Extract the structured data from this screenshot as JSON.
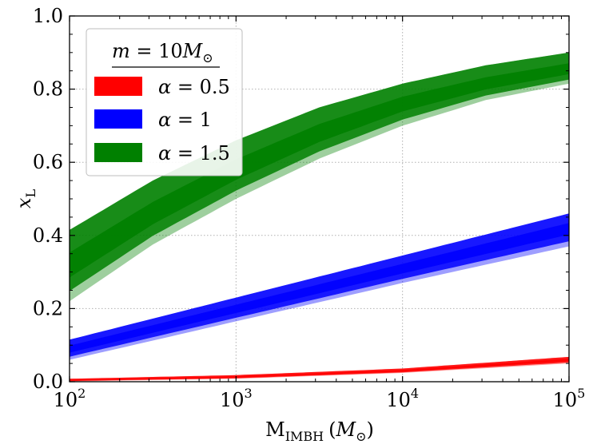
{
  "chart_data": {
    "type": "area",
    "title": "",
    "xlabel": {
      "main": "M",
      "sub": "IMBH",
      "unit_open": "(",
      "unit_var": "M",
      "unit_sub": "⊙",
      "unit_close": ")"
    },
    "ylabel": {
      "main": "x",
      "sub": "L"
    },
    "xscale": "log",
    "xlim": [
      100,
      100000
    ],
    "ylim": [
      0.0,
      1.0
    ],
    "grid": true,
    "x_ticks": [
      {
        "value": 100,
        "base": "10",
        "exp": "2"
      },
      {
        "value": 1000,
        "base": "10",
        "exp": "3"
      },
      {
        "value": 10000,
        "base": "10",
        "exp": "4"
      },
      {
        "value": 100000,
        "base": "10",
        "exp": "5"
      }
    ],
    "y_ticks": [
      {
        "value": 0.0,
        "label": "0.0"
      },
      {
        "value": 0.2,
        "label": "0.2"
      },
      {
        "value": 0.4,
        "label": "0.4"
      },
      {
        "value": 0.6,
        "label": "0.6"
      },
      {
        "value": 0.8,
        "label": "0.8"
      },
      {
        "value": 1.0,
        "label": "1.0"
      }
    ],
    "legend": {
      "placement": "top-left",
      "title": {
        "lhs": "m",
        "eq": " = 10",
        "var": "M",
        "sub": "⊙"
      },
      "entries": [
        {
          "symbol": "α",
          "text": " = 0.5",
          "color": "#ff0000"
        },
        {
          "symbol": "α",
          "text": " = 1",
          "color": "#0000ff"
        },
        {
          "symbol": "α",
          "text": " = 1.5",
          "color": "#008000"
        }
      ]
    },
    "series": [
      {
        "name": "α = 0.5",
        "color": "#ff0000",
        "x": [
          100,
          1000,
          10000,
          100000
        ],
        "upper": [
          0.008,
          0.018,
          0.036,
          0.068
        ],
        "center": [
          0.004,
          0.013,
          0.03,
          0.06
        ],
        "lower": [
          0.001,
          0.008,
          0.024,
          0.05
        ]
      },
      {
        "name": "α = 1",
        "color": "#0000ff",
        "x": [
          100,
          1000,
          10000,
          100000
        ],
        "upper": [
          0.115,
          0.23,
          0.345,
          0.46
        ],
        "center": [
          0.09,
          0.2,
          0.31,
          0.42
        ],
        "lower": [
          0.06,
          0.165,
          0.27,
          0.37
        ]
      },
      {
        "name": "α = 1.5",
        "color": "#008000",
        "x": [
          100,
          316,
          1000,
          3162,
          10000,
          31623,
          100000
        ],
        "upper": [
          0.415,
          0.55,
          0.66,
          0.75,
          0.815,
          0.865,
          0.9
        ],
        "center": [
          0.32,
          0.46,
          0.58,
          0.68,
          0.76,
          0.815,
          0.855
        ],
        "lower": [
          0.22,
          0.375,
          0.5,
          0.61,
          0.7,
          0.77,
          0.815
        ]
      }
    ]
  }
}
